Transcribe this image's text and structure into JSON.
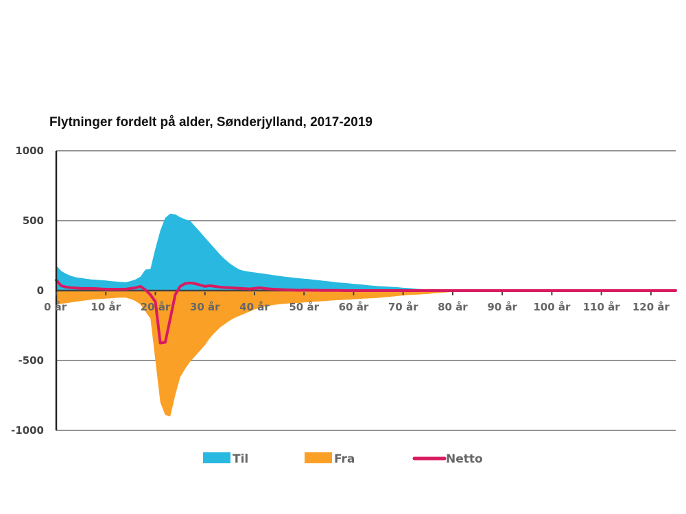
{
  "chart_data": {
    "type": "area",
    "title": "Flytninger fordelt på alder, Sønderjylland, 2017-2019",
    "xlabel": "",
    "ylabel": "",
    "xlim": [
      0,
      125
    ],
    "ylim": [
      -1000,
      1000
    ],
    "y_ticks": [
      1000,
      500,
      0,
      -500,
      -1000
    ],
    "y_tick_labels": [
      "1000",
      "500",
      "0",
      "-500",
      "-1000"
    ],
    "x_ticks": [
      0,
      10,
      20,
      30,
      40,
      50,
      60,
      70,
      80,
      90,
      100,
      110,
      120
    ],
    "x_tick_labels": [
      "0 år",
      "10 år",
      "20 år",
      "30 år",
      "40 år",
      "50 år",
      "60 år",
      "70 år",
      "80 år",
      "90 år",
      "100 år",
      "110 år",
      "120 år"
    ],
    "grid": true,
    "legend_position": "bottom",
    "colors": {
      "til": "#29b9e0",
      "fra": "#fba026",
      "netto": "#d81b60",
      "axis": "#222222",
      "grid": "#555555"
    },
    "x": [
      0,
      1,
      2,
      3,
      4,
      5,
      6,
      7,
      8,
      9,
      10,
      11,
      12,
      13,
      14,
      15,
      16,
      17,
      18,
      19,
      20,
      21,
      22,
      23,
      24,
      25,
      26,
      27,
      28,
      29,
      30,
      31,
      32,
      33,
      34,
      35,
      36,
      37,
      38,
      39,
      40,
      41,
      42,
      43,
      44,
      45,
      46,
      47,
      48,
      49,
      50,
      51,
      52,
      53,
      54,
      55,
      56,
      57,
      58,
      59,
      60,
      61,
      62,
      63,
      64,
      65,
      66,
      67,
      68,
      69,
      70,
      71,
      72,
      73,
      74,
      75,
      76,
      77,
      78,
      79,
      80,
      81,
      82,
      83,
      84,
      85,
      86,
      87,
      88,
      89,
      90,
      91,
      92,
      93,
      94,
      95,
      96,
      97,
      98,
      99,
      100,
      101,
      102,
      103,
      104,
      105,
      106,
      107,
      108,
      109,
      110,
      111,
      112,
      113,
      114,
      115,
      116,
      117,
      118,
      119,
      120,
      121,
      122,
      123,
      124,
      125
    ],
    "series": [
      {
        "name": "Til",
        "values": [
          180,
          140,
          120,
          105,
          95,
          90,
          85,
          80,
          78,
          75,
          72,
          68,
          65,
          62,
          60,
          68,
          80,
          100,
          150,
          155,
          300,
          430,
          520,
          550,
          545,
          525,
          510,
          500,
          460,
          420,
          380,
          340,
          300,
          260,
          225,
          195,
          170,
          150,
          140,
          135,
          130,
          125,
          120,
          115,
          110,
          105,
          100,
          96,
          92,
          88,
          85,
          82,
          78,
          74,
          70,
          66,
          62,
          58,
          55,
          52,
          48,
          45,
          42,
          38,
          35,
          32,
          30,
          28,
          26,
          24,
          20,
          18,
          15,
          12,
          10,
          8,
          6,
          5,
          4,
          3,
          2,
          2,
          1,
          1,
          1,
          1,
          1,
          1,
          1,
          1,
          1,
          0,
          0,
          0,
          0,
          0,
          0,
          0,
          0,
          0,
          0,
          0,
          0,
          0,
          0,
          0,
          0,
          0,
          0,
          0,
          0,
          0,
          0,
          0,
          0,
          0,
          0,
          0,
          0,
          0,
          0,
          0,
          0,
          0,
          0,
          0
        ]
      },
      {
        "name": "Fra",
        "values": [
          -95,
          -95,
          -90,
          -85,
          -80,
          -75,
          -70,
          -65,
          -62,
          -60,
          -58,
          -55,
          -52,
          -50,
          -50,
          -60,
          -75,
          -100,
          -150,
          -200,
          -500,
          -800,
          -890,
          -900,
          -750,
          -620,
          -560,
          -510,
          -470,
          -430,
          -390,
          -340,
          -300,
          -265,
          -240,
          -215,
          -195,
          -180,
          -165,
          -150,
          -135,
          -125,
          -115,
          -108,
          -102,
          -98,
          -95,
          -92,
          -90,
          -88,
          -85,
          -83,
          -80,
          -78,
          -75,
          -72,
          -70,
          -68,
          -66,
          -64,
          -62,
          -60,
          -58,
          -56,
          -54,
          -52,
          -48,
          -45,
          -42,
          -38,
          -35,
          -32,
          -30,
          -28,
          -26,
          -24,
          -20,
          -17,
          -15,
          -12,
          -10,
          -8,
          -6,
          -5,
          -4,
          -3,
          -2,
          -2,
          -1,
          -1,
          -1,
          -1,
          0,
          0,
          0,
          0,
          0,
          0,
          0,
          0,
          0,
          0,
          0,
          0,
          0,
          0,
          0,
          0,
          0,
          0,
          0,
          0,
          0,
          0,
          0,
          0,
          0,
          0,
          0,
          0,
          0,
          0,
          0,
          0,
          0,
          0
        ]
      },
      {
        "name": "Netto",
        "values": [
          75,
          35,
          25,
          20,
          18,
          15,
          15,
          15,
          14,
          12,
          10,
          10,
          10,
          10,
          10,
          15,
          20,
          30,
          5,
          -30,
          -80,
          -375,
          -370,
          -200,
          -30,
          30,
          50,
          55,
          50,
          40,
          30,
          35,
          30,
          25,
          22,
          20,
          18,
          16,
          14,
          12,
          15,
          20,
          15,
          12,
          10,
          8,
          6,
          5,
          4,
          2,
          4,
          3,
          2,
          2,
          1,
          1,
          1,
          1,
          0,
          0,
          0,
          0,
          0,
          0,
          0,
          0,
          0,
          0,
          0,
          0,
          0,
          0,
          0,
          0,
          0,
          0,
          0,
          0,
          0,
          0,
          0,
          0,
          0,
          0,
          0,
          0,
          0,
          0,
          0,
          0,
          0,
          0,
          0,
          0,
          0,
          0,
          0,
          0,
          0,
          0,
          0,
          0,
          0,
          0,
          0,
          0,
          0,
          0,
          0,
          0,
          0,
          0,
          0,
          0,
          0,
          0,
          0,
          0,
          0,
          0,
          0,
          0,
          0,
          0,
          0,
          0
        ]
      }
    ]
  }
}
